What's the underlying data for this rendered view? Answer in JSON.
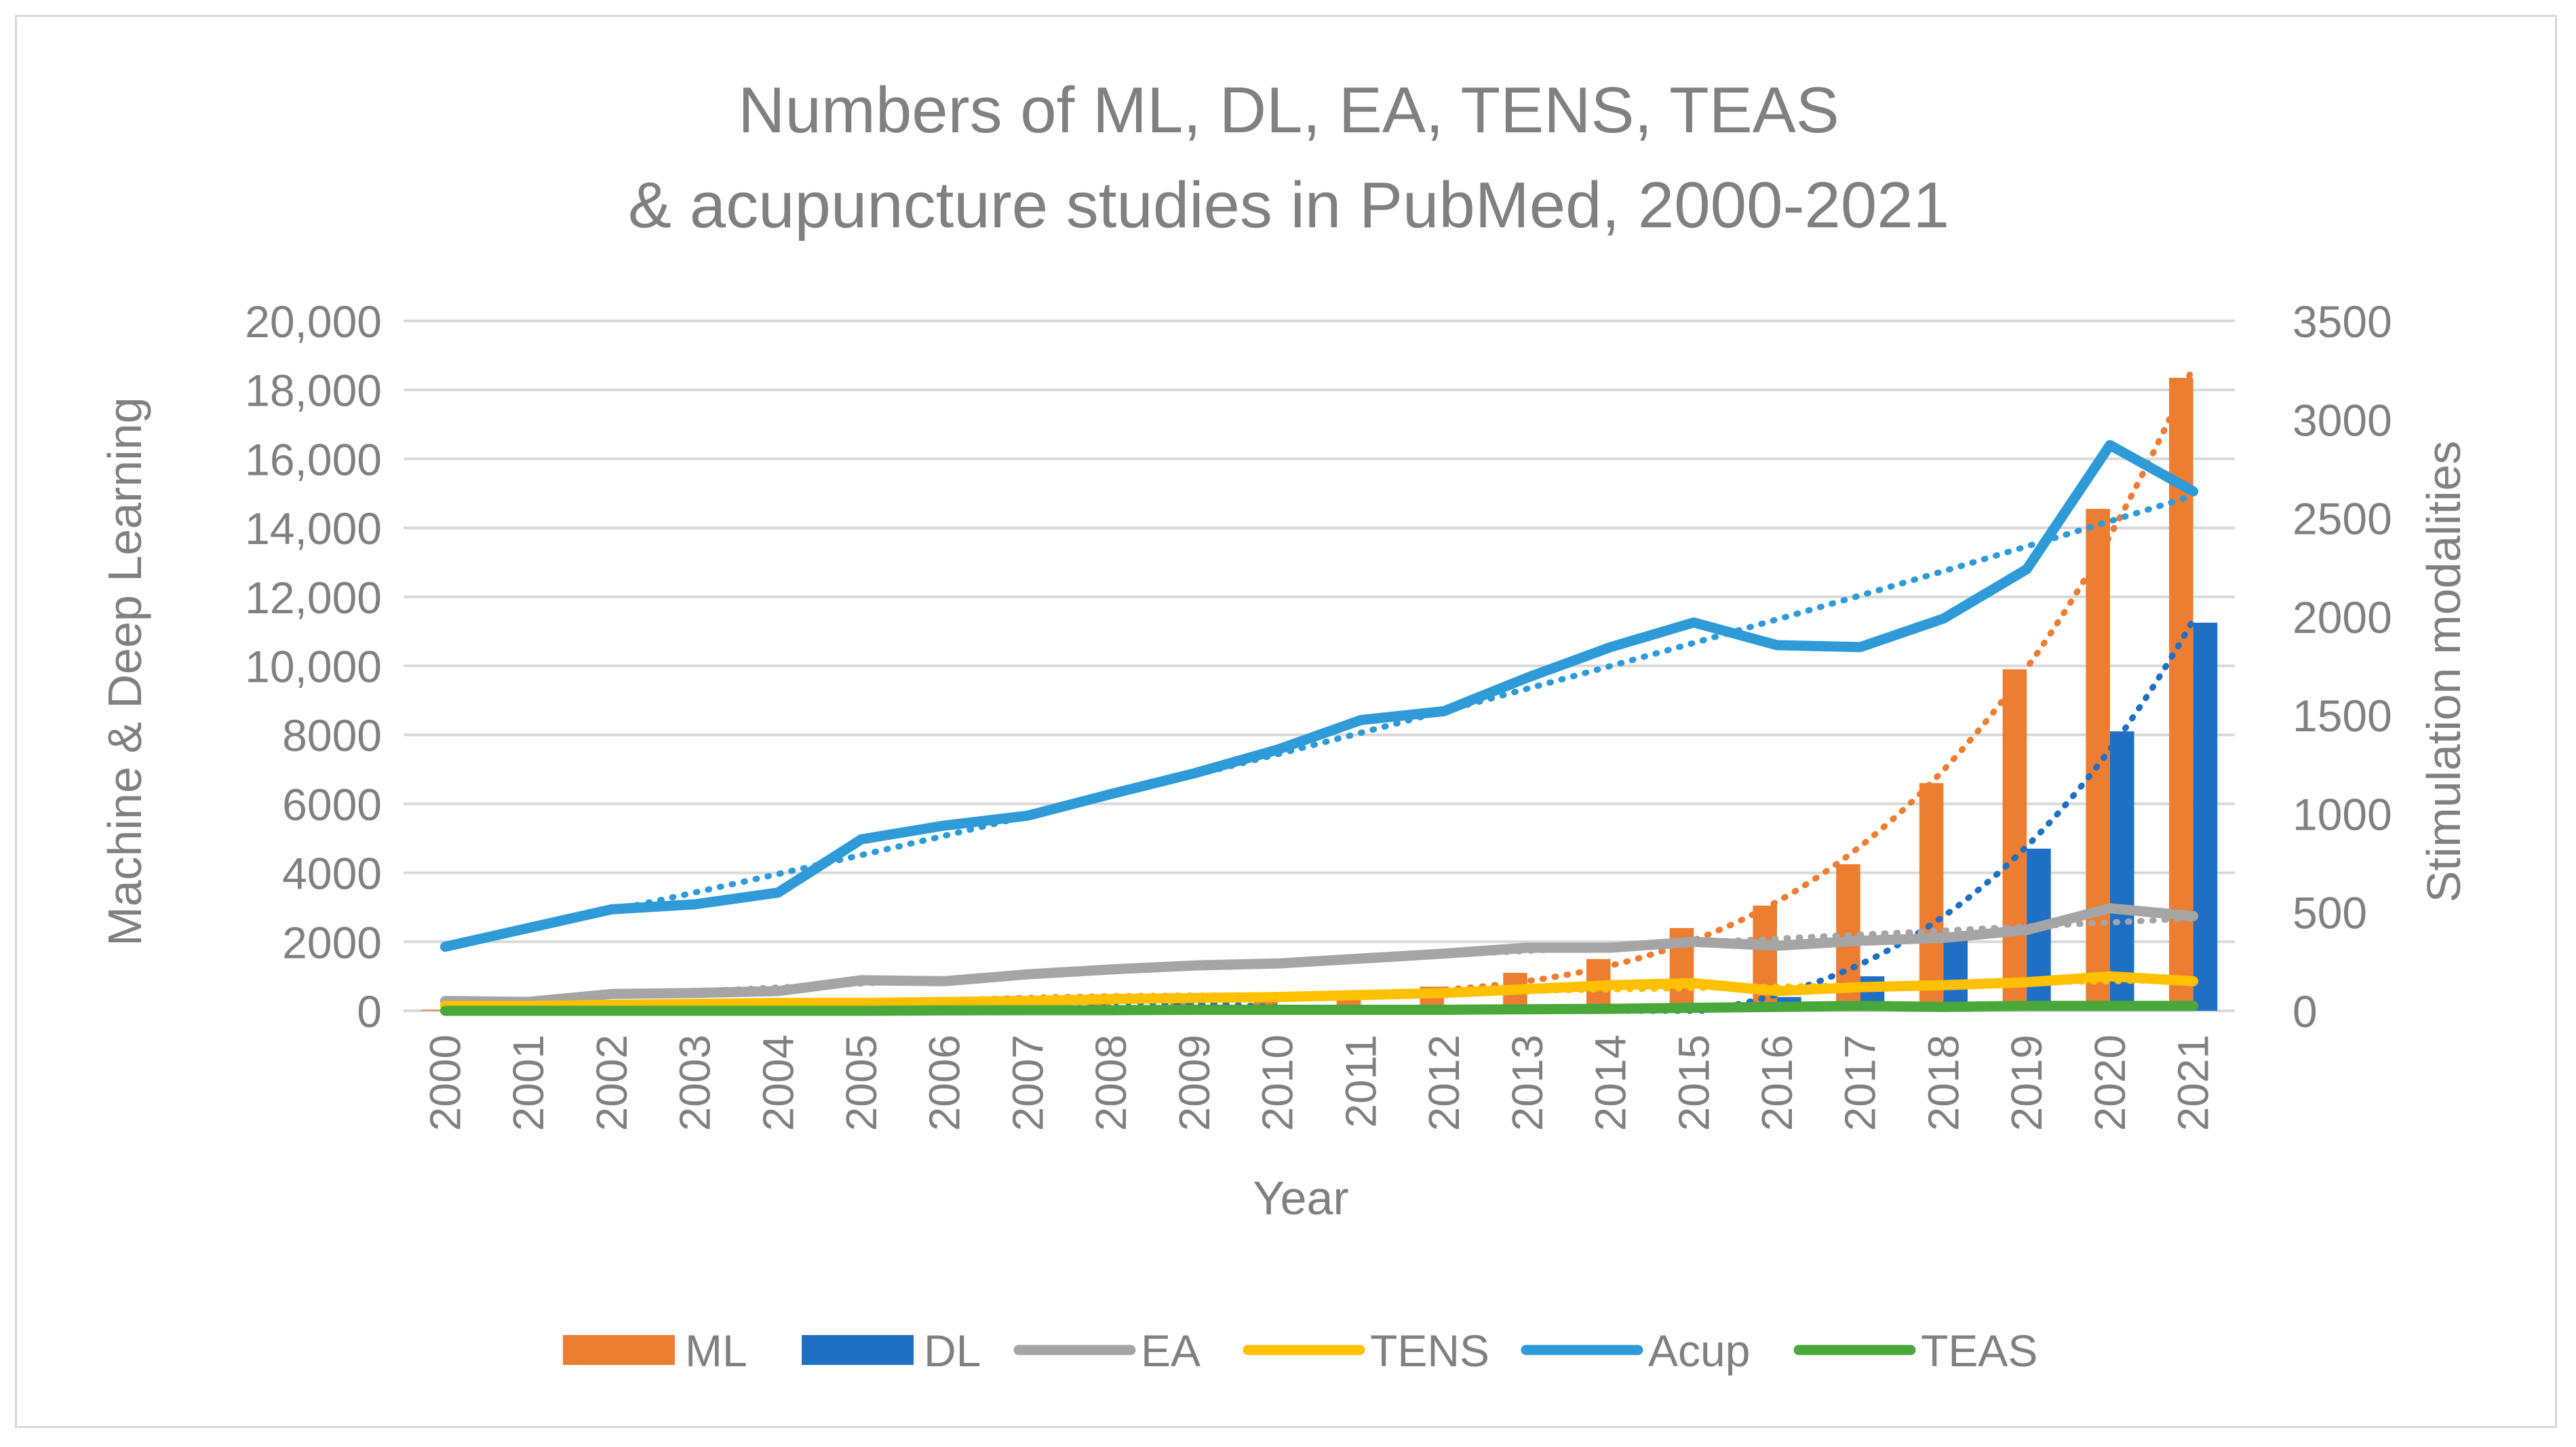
{
  "chart_data": {
    "type": "bar+line",
    "title_line1": "Numbers of ML, DL, EA, TENS, TEAS",
    "title_line2": "& acupuncture studies in PubMed, 2000-2021",
    "xlabel": "Year",
    "ylabel_left": "Machine & Deep Learning",
    "ylabel_right": "Stimulation modalities",
    "ylim_left": [
      0,
      20000
    ],
    "ylim_right": [
      0,
      3500
    ],
    "yticks_left": [
      "0",
      "2000",
      "4000",
      "6000",
      "8000",
      "10,000",
      "12,000",
      "14,000",
      "16,000",
      "18,000",
      "20,000"
    ],
    "yticks_right": [
      "0",
      "500",
      "1000",
      "1500",
      "2000",
      "2500",
      "3000",
      "3500"
    ],
    "grid": true,
    "legend_position": "bottom",
    "categories": [
      "2000",
      "2001",
      "2002",
      "2003",
      "2004",
      "2005",
      "2006",
      "2007",
      "2008",
      "2009",
      "2010",
      "2011",
      "2012",
      "2013",
      "2014",
      "2015",
      "2016",
      "2017",
      "2018",
      "2019",
      "2020",
      "2021"
    ],
    "bar_series": [
      {
        "name": "ML",
        "axis": "left",
        "color": "#ED7D31",
        "values": [
          30,
          40,
          60,
          80,
          100,
          150,
          200,
          250,
          300,
          350,
          400,
          500,
          700,
          1100,
          1500,
          2400,
          3050,
          4250,
          6600,
          9900,
          14550,
          18350
        ]
      },
      {
        "name": "DL",
        "axis": "left",
        "color": "#1F6FC5",
        "values": [
          0,
          0,
          0,
          0,
          0,
          0,
          0,
          0,
          0,
          0,
          10,
          20,
          30,
          50,
          100,
          200,
          400,
          1000,
          2150,
          4700,
          8100,
          11250
        ]
      }
    ],
    "line_series": [
      {
        "name": "EA",
        "axis": "right",
        "color": "#A5A5A5",
        "values": [
          50,
          45,
          85,
          90,
          100,
          155,
          150,
          185,
          210,
          230,
          240,
          265,
          290,
          320,
          320,
          350,
          330,
          355,
          370,
          410,
          520,
          480
        ]
      },
      {
        "name": "TENS",
        "axis": "right",
        "color": "#FFC000",
        "values": [
          25,
          25,
          30,
          35,
          40,
          40,
          45,
          50,
          60,
          65,
          70,
          80,
          90,
          110,
          130,
          140,
          100,
          120,
          130,
          145,
          175,
          150
        ]
      },
      {
        "name": "Acup",
        "axis": "right",
        "color": "#2E9BD8",
        "values": [
          325,
          420,
          515,
          540,
          600,
          870,
          940,
          990,
          1100,
          1205,
          1325,
          1475,
          1520,
          1690,
          1845,
          1970,
          1855,
          1845,
          1990,
          2240,
          2870,
          2635
        ]
      },
      {
        "name": "TEAS",
        "axis": "right",
        "color": "#4AA83B",
        "values": [
          0,
          0,
          0,
          0,
          0,
          0,
          2,
          3,
          3,
          5,
          5,
          5,
          5,
          8,
          10,
          15,
          20,
          25,
          20,
          25,
          25,
          25
        ]
      }
    ],
    "trendlines": [
      {
        "name": "ML trend",
        "color": "#ED7D31",
        "style": "dotted"
      },
      {
        "name": "DL trend",
        "color": "#1F6FC5",
        "style": "dotted"
      },
      {
        "name": "EA trend",
        "color": "#A5A5A5",
        "style": "dotted"
      },
      {
        "name": "TENS trend",
        "color": "#FFC000",
        "style": "dotted"
      },
      {
        "name": "Acup trend",
        "color": "#2E9BD8",
        "style": "dotted"
      }
    ],
    "legend": [
      "ML",
      "DL",
      "EA",
      "TENS",
      "Acup",
      "TEAS"
    ]
  }
}
